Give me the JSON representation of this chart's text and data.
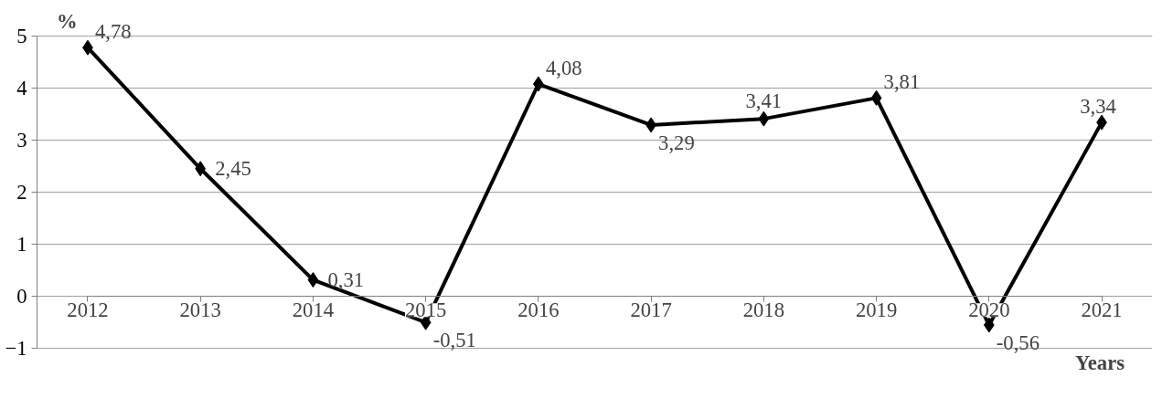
{
  "chart_data": {
    "type": "line",
    "ylabel": "%",
    "xlabel": "Years",
    "categories": [
      "2012",
      "2013",
      "2014",
      "2015",
      "2016",
      "2017",
      "2018",
      "2019",
      "2020",
      "2021"
    ],
    "series": [
      {
        "color": "#000000",
        "values": [
          4.78,
          2.45,
          0.31,
          -0.51,
          4.08,
          3.29,
          3.41,
          3.81,
          -0.56,
          3.34
        ],
        "value_labels": [
          "4,78",
          "2,45",
          "0,31",
          "-0,51",
          "4,08",
          "3,29",
          "3,41",
          "3,81",
          "-0,56",
          "3,34"
        ]
      }
    ],
    "ylim": [
      -1,
      5
    ],
    "yticks": [
      -1,
      0,
      1,
      2,
      3,
      4,
      5
    ],
    "grid": "y",
    "marker": "diamond",
    "line_style": "solid"
  }
}
